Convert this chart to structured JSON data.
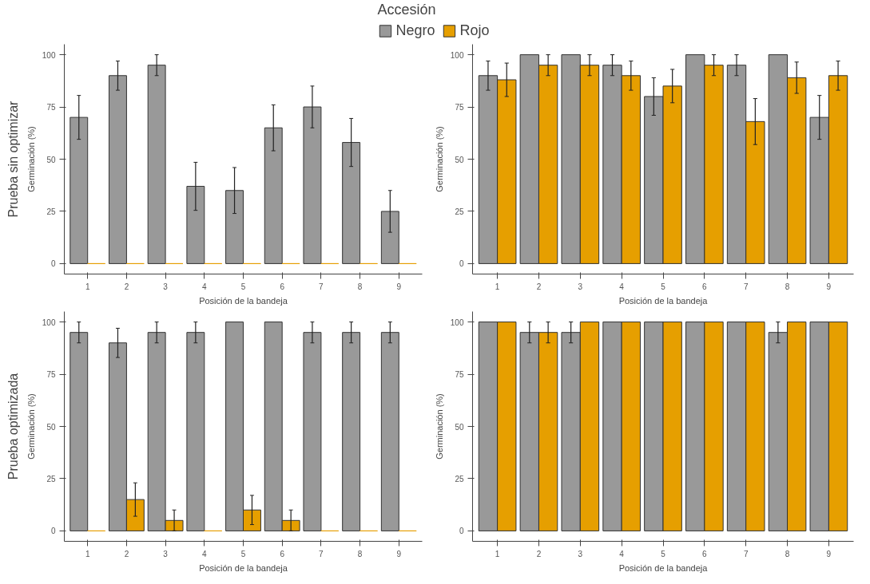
{
  "chart_data": [
    {
      "type": "bar",
      "legend_title": "Accesión",
      "legend": "top",
      "annotations": [
        "Prueba sin optimizar"
      ],
      "xlabel": "Posición de la bandeja",
      "ylabel": "Germinación (%)",
      "categories": [
        "1",
        "2",
        "3",
        "4",
        "5",
        "6",
        "7",
        "8",
        "9"
      ],
      "ylim": [
        -5,
        105
      ],
      "yticks": [
        0,
        25,
        50,
        75,
        100
      ],
      "series": [
        {
          "name": "Negro",
          "color": "#999999",
          "values": [
            70,
            90,
            95,
            37,
            35,
            65,
            75,
            58,
            25
          ],
          "errors": [
            10.5,
            7,
            5,
            11.5,
            11,
            11,
            10,
            11.5,
            10
          ]
        },
        {
          "name": "Rojo",
          "color": "#e69f00",
          "values": [
            0,
            0,
            0,
            0,
            0,
            0,
            0,
            0,
            0
          ],
          "errors": [
            null,
            null,
            null,
            null,
            null,
            null,
            null,
            null,
            null
          ]
        }
      ]
    },
    {
      "type": "bar",
      "xlabel": "Posición de la bandeja",
      "ylabel": "Germinación (%)",
      "categories": [
        "1",
        "2",
        "3",
        "4",
        "5",
        "6",
        "7",
        "8",
        "9"
      ],
      "ylim": [
        -5,
        105
      ],
      "yticks": [
        0,
        25,
        50,
        75,
        100
      ],
      "series": [
        {
          "color": "#999999",
          "values": [
            90,
            100,
            100,
            95,
            80,
            100,
            95,
            100,
            70
          ],
          "errors": [
            7,
            null,
            null,
            5,
            9,
            null,
            5,
            null,
            10.5
          ]
        },
        {
          "color": "#e69f00",
          "values": [
            88,
            95,
            95,
            90,
            85,
            95,
            68,
            89,
            90
          ],
          "errors": [
            8,
            5,
            5,
            7,
            8,
            5,
            11,
            7.5,
            7
          ]
        }
      ]
    },
    {
      "type": "bar",
      "annotations": [
        "Prueba optimizada"
      ],
      "xlabel": "Posición de la bandeja",
      "ylabel": "Germinación (%)",
      "categories": [
        "1",
        "2",
        "3",
        "4",
        "5",
        "6",
        "7",
        "8",
        "9"
      ],
      "ylim": [
        -5,
        105
      ],
      "yticks": [
        0,
        25,
        50,
        75,
        100
      ],
      "series": [
        {
          "color": "#999999",
          "values": [
            95,
            90,
            95,
            95,
            100,
            100,
            95,
            95,
            95
          ],
          "errors": [
            5,
            7,
            5,
            5,
            null,
            null,
            5,
            5,
            5
          ]
        },
        {
          "color": "#e69f00",
          "values": [
            0,
            15,
            5,
            0,
            10,
            5,
            0,
            0,
            0
          ],
          "errors": [
            null,
            8,
            5,
            null,
            7,
            5,
            null,
            null,
            null
          ]
        }
      ]
    },
    {
      "type": "bar",
      "xlabel": "Posición de la bandeja",
      "ylabel": "Germinación (%)",
      "categories": [
        "1",
        "2",
        "3",
        "4",
        "5",
        "6",
        "7",
        "8",
        "9"
      ],
      "ylim": [
        -5,
        105
      ],
      "yticks": [
        0,
        25,
        50,
        75,
        100
      ],
      "series": [
        {
          "color": "#999999",
          "values": [
            100,
            95,
            95,
            100,
            100,
            100,
            100,
            95,
            100
          ],
          "errors": [
            null,
            5,
            5,
            null,
            null,
            null,
            null,
            5,
            null
          ]
        },
        {
          "color": "#e69f00",
          "values": [
            100,
            95,
            100,
            100,
            100,
            100,
            100,
            100,
            100
          ],
          "errors": [
            null,
            5,
            null,
            null,
            null,
            null,
            null,
            null,
            null
          ]
        }
      ]
    }
  ]
}
